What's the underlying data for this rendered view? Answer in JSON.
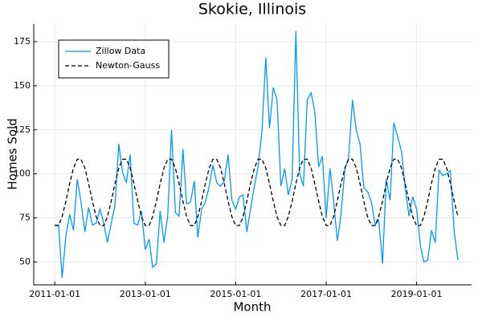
{
  "chart_data": {
    "type": "line",
    "title": "Skokie, Illinois",
    "x_label": "Month",
    "y_label": "Homes Sold",
    "x": [
      "2011-01-01",
      "2011-02-01",
      "2011-03-01",
      "2011-04-01",
      "2011-05-01",
      "2011-06-01",
      "2011-07-01",
      "2011-08-01",
      "2011-09-01",
      "2011-10-01",
      "2011-11-01",
      "2011-12-01",
      "2012-01-01",
      "2012-02-01",
      "2012-03-01",
      "2012-04-01",
      "2012-05-01",
      "2012-06-01",
      "2012-07-01",
      "2012-08-01",
      "2012-09-01",
      "2012-10-01",
      "2012-11-01",
      "2012-12-01",
      "2013-01-01",
      "2013-02-01",
      "2013-03-01",
      "2013-04-01",
      "2013-05-01",
      "2013-06-01",
      "2013-07-01",
      "2013-08-01",
      "2013-09-01",
      "2013-10-01",
      "2013-11-01",
      "2013-12-01",
      "2014-01-01",
      "2014-02-01",
      "2014-03-01",
      "2014-04-01",
      "2014-05-01",
      "2014-06-01",
      "2014-07-01",
      "2014-08-01",
      "2014-09-01",
      "2014-10-01",
      "2014-11-01",
      "2014-12-01",
      "2015-01-01",
      "2015-02-01",
      "2015-03-01",
      "2015-04-01",
      "2015-05-01",
      "2015-06-01",
      "2015-07-01",
      "2015-08-01",
      "2015-09-01",
      "2015-10-01",
      "2015-11-01",
      "2015-12-01",
      "2016-01-01",
      "2016-02-01",
      "2016-03-01",
      "2016-04-01",
      "2016-05-01",
      "2016-06-01",
      "2016-07-01",
      "2016-08-01",
      "2016-09-01",
      "2016-10-01",
      "2016-11-01",
      "2016-12-01",
      "2017-01-01",
      "2017-02-01",
      "2017-03-01",
      "2017-04-01",
      "2017-05-01",
      "2017-06-01",
      "2017-07-01",
      "2017-08-01",
      "2017-09-01",
      "2017-10-01",
      "2017-11-01",
      "2017-12-01",
      "2018-01-01",
      "2018-02-01",
      "2018-03-01",
      "2018-04-01",
      "2018-05-01",
      "2018-06-01",
      "2018-07-01",
      "2018-08-01",
      "2018-09-01",
      "2018-10-01",
      "2018-11-01",
      "2018-12-01",
      "2019-01-01",
      "2019-02-01",
      "2019-03-01",
      "2019-04-01",
      "2019-05-01",
      "2019-06-01",
      "2019-07-01",
      "2019-08-01",
      "2019-09-01",
      "2019-10-01",
      "2019-11-01",
      "2019-12-01"
    ],
    "series": [
      {
        "name": "Zillow Data",
        "color": "#009af9",
        "dash": false,
        "values": [
          71,
          71,
          41,
          65,
          77,
          68,
          97,
          84,
          67,
          81,
          71,
          72,
          80,
          72,
          61,
          72,
          82,
          117,
          101,
          95,
          111,
          72,
          71,
          79,
          57,
          63,
          47,
          49,
          79,
          61,
          76,
          125,
          78,
          76,
          114,
          83,
          84,
          96,
          64,
          80,
          84,
          93,
          105,
          95,
          93,
          96,
          111,
          85,
          80,
          87,
          88,
          67,
          80,
          93,
          104,
          124,
          166,
          126,
          149,
          142,
          93,
          103,
          88,
          97,
          181,
          100,
          93,
          142,
          146,
          135,
          104,
          110,
          75,
          103,
          85,
          62,
          77,
          103,
          109,
          142,
          125,
          117,
          92,
          90,
          84,
          71,
          74,
          49,
          97,
          85,
          129,
          121,
          113,
          92,
          76,
          87,
          80,
          59,
          50,
          51,
          68,
          61,
          102,
          99,
          100,
          102,
          67,
          51
        ]
      },
      {
        "name": "Newton-Gauss",
        "color": "#000000",
        "dash": true,
        "values": [
          70.7,
          70.7,
          75.7,
          84.5,
          94.5,
          103.3,
          108.3,
          108.3,
          103.3,
          94.5,
          84.5,
          75.7,
          70.7,
          70.7,
          75.7,
          84.5,
          94.5,
          103.3,
          108.3,
          108.3,
          103.3,
          94.5,
          84.5,
          75.7,
          70.7,
          70.7,
          75.7,
          84.5,
          94.5,
          103.3,
          108.3,
          108.3,
          103.3,
          94.5,
          84.5,
          75.7,
          70.7,
          70.7,
          75.7,
          84.5,
          94.5,
          103.3,
          108.3,
          108.3,
          103.3,
          94.5,
          84.5,
          75.7,
          70.7,
          70.7,
          75.7,
          84.5,
          94.5,
          103.3,
          108.3,
          108.3,
          103.3,
          94.5,
          84.5,
          75.7,
          70.7,
          70.7,
          75.7,
          84.5,
          94.5,
          103.3,
          108.3,
          108.3,
          103.3,
          94.5,
          84.5,
          75.7,
          70.7,
          70.7,
          75.7,
          84.5,
          94.5,
          103.3,
          108.3,
          108.3,
          103.3,
          94.5,
          84.5,
          75.7,
          70.7,
          70.7,
          75.7,
          84.5,
          94.5,
          103.3,
          108.3,
          108.3,
          103.3,
          94.5,
          84.5,
          75.7,
          70.7,
          70.7,
          75.7,
          84.5,
          94.5,
          103.3,
          108.3,
          108.3,
          103.3,
          94.5,
          84.5,
          75.7
        ]
      }
    ],
    "xlim": [
      "2010-07-15",
      "2020-03-20"
    ],
    "xticks": [
      "2011-01-01",
      "2013-01-01",
      "2015-01-01",
      "2017-01-01",
      "2019-01-01"
    ],
    "ylim": [
      37,
      185
    ],
    "yticks": [
      50,
      75,
      100,
      125,
      150,
      175
    ],
    "grid": true,
    "legend": "upper left"
  }
}
